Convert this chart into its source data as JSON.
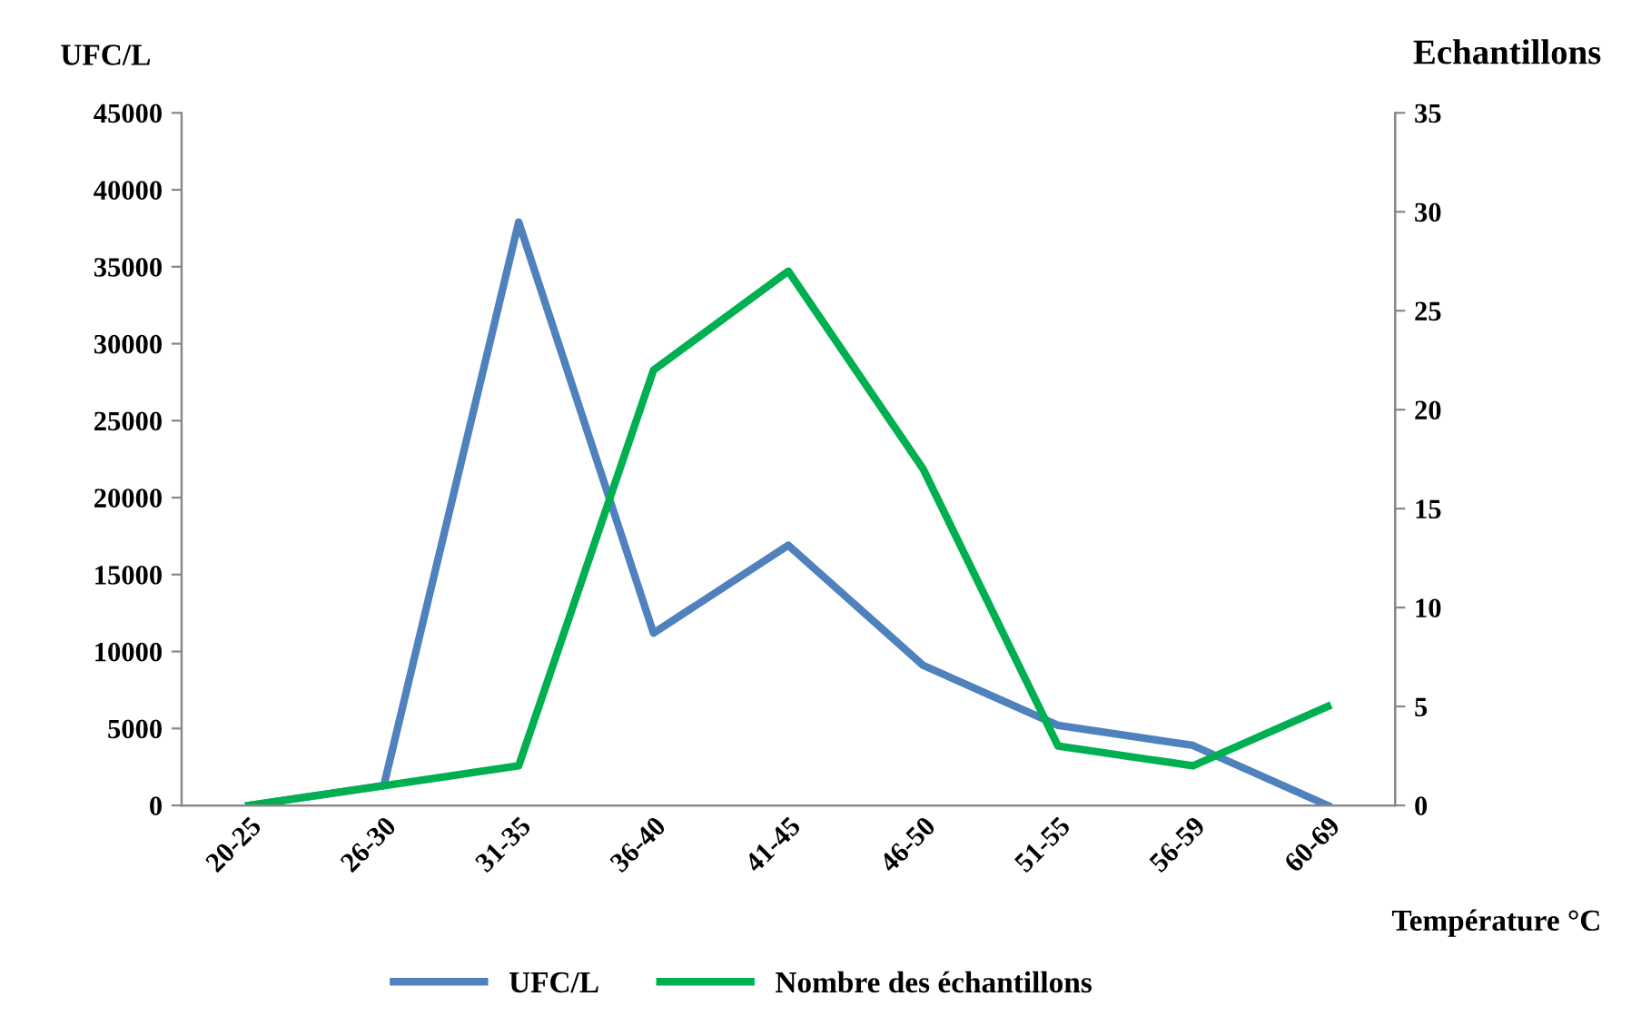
{
  "chart_data": {
    "type": "line",
    "categories": [
      "20-25",
      "26-30",
      "31-35",
      "36-40",
      "41-45",
      "46-50",
      "51-55",
      "56-59",
      "60-69"
    ],
    "series": [
      {
        "name": "UFC/L",
        "color": "#4f81bd",
        "values": [
          0,
          1300,
          37900,
          11200,
          16900,
          9100,
          5200,
          3900,
          0
        ]
      },
      {
        "name": "Nombre des échantillons",
        "color": "#00b050",
        "axis": "y2",
        "values": [
          0,
          1,
          2,
          22,
          27,
          17,
          3,
          2,
          5
        ]
      }
    ],
    "ylabel": "UFC/L",
    "y2label": "Echantillons",
    "xlabel": "Température °C",
    "ylim": [
      0,
      45000
    ],
    "yticks": [
      0,
      5000,
      10000,
      15000,
      20000,
      25000,
      30000,
      35000,
      40000,
      45000
    ],
    "y2lim": [
      0,
      35
    ],
    "y2ticks": [
      0,
      5,
      10,
      15,
      20,
      25,
      30,
      35
    ],
    "grid": false,
    "legend": "bottom",
    "marker": "none",
    "line_style": "solid"
  }
}
